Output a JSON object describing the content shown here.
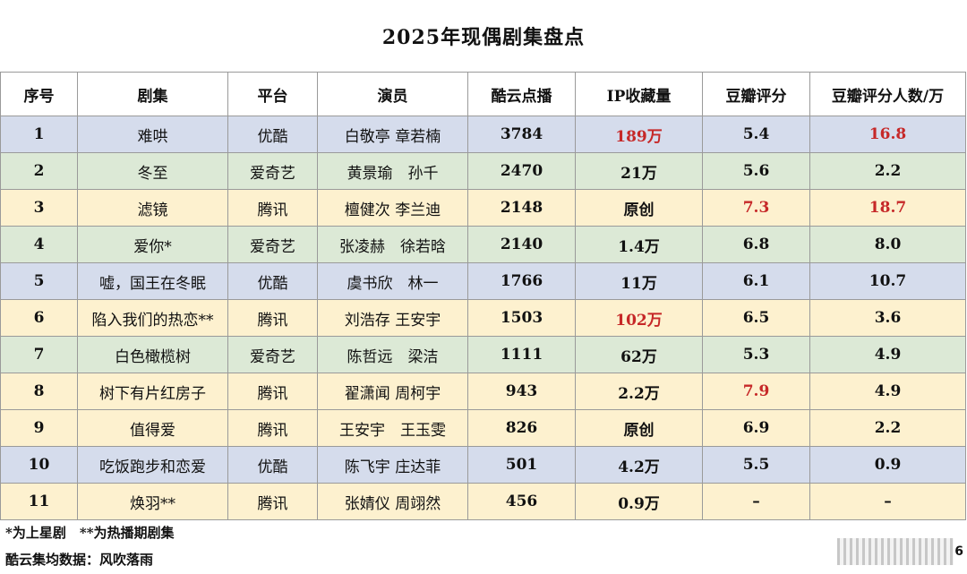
{
  "title": "2025年现偶剧集盘点",
  "columns": [
    "序号",
    "剧集",
    "平台",
    "演员",
    "酷云点播",
    "IP收藏量",
    "豆瓣评分",
    "豆瓣评分人数/万"
  ],
  "rows": [
    {
      "no": "1",
      "drama": "难哄",
      "platform": "优酷",
      "actors": "白敬亭 章若楠",
      "kuyun": "3784",
      "ip": "189万",
      "score": "5.4",
      "raters": "16.8",
      "tint": "blue",
      "red": [
        "ip",
        "raters"
      ]
    },
    {
      "no": "2",
      "drama": "冬至",
      "platform": "爱奇艺",
      "actors": "黄景瑜　孙千",
      "kuyun": "2470",
      "ip": "21万",
      "score": "5.6",
      "raters": "2.2",
      "tint": "green",
      "red": []
    },
    {
      "no": "3",
      "drama": "滤镜",
      "platform": "腾讯",
      "actors": "檀健次 李兰迪",
      "kuyun": "2148",
      "ip": "原创",
      "score": "7.3",
      "raters": "18.7",
      "tint": "yellow",
      "red": [
        "score",
        "raters"
      ]
    },
    {
      "no": "4",
      "drama": "爱你*",
      "platform": "爱奇艺",
      "actors": "张凌赫　徐若晗",
      "kuyun": "2140",
      "ip": "1.4万",
      "score": "6.8",
      "raters": "8.0",
      "tint": "green",
      "red": []
    },
    {
      "no": "5",
      "drama": "嘘，国王在冬眠",
      "platform": "优酷",
      "actors": "虞书欣　林一",
      "kuyun": "1766",
      "ip": "11万",
      "score": "6.1",
      "raters": "10.7",
      "tint": "blue",
      "red": []
    },
    {
      "no": "6",
      "drama": "陷入我们的热恋**",
      "platform": "腾讯",
      "actors": "刘浩存 王安宇",
      "kuyun": "1503",
      "ip": "102万",
      "score": "6.5",
      "raters": "3.6",
      "tint": "yellow",
      "red": [
        "ip"
      ]
    },
    {
      "no": "7",
      "drama": "白色橄榄树",
      "platform": "爱奇艺",
      "actors": "陈哲远　梁洁",
      "kuyun": "1111",
      "ip": "62万",
      "score": "5.3",
      "raters": "4.9",
      "tint": "green",
      "red": []
    },
    {
      "no": "8",
      "drama": "树下有片红房子",
      "platform": "腾讯",
      "actors": "翟潇闻 周柯宇",
      "kuyun": "943",
      "ip": "2.2万",
      "score": "7.9",
      "raters": "4.9",
      "tint": "yellow",
      "red": [
        "score"
      ]
    },
    {
      "no": "9",
      "drama": "值得爱",
      "platform": "腾讯",
      "actors": "王安宇　王玉雯",
      "kuyun": "826",
      "ip": "原创",
      "score": "6.9",
      "raters": "2.2",
      "tint": "yellow",
      "red": []
    },
    {
      "no": "10",
      "drama": "吃饭跑步和恋爱",
      "platform": "优酷",
      "actors": "陈飞宇 庄达菲",
      "kuyun": "501",
      "ip": "4.2万",
      "score": "5.5",
      "raters": "0.9",
      "tint": "blue",
      "red": []
    },
    {
      "no": "11",
      "drama": "焕羽**",
      "platform": "腾讯",
      "actors": "张婧仪 周翊然",
      "kuyun": "456",
      "ip": "0.9万",
      "score": "–",
      "raters": "–",
      "tint": "yellow",
      "red": []
    }
  ],
  "footnote": "*为上星剧　**为热播期剧集",
  "source": "酷云集均数据：风吹落雨",
  "watermark_digit": "6",
  "colors": {
    "blue_row": "#d5dcec",
    "green_row": "#dce9d6",
    "yellow_row": "#fdf1cf",
    "highlight": "#c62828"
  }
}
